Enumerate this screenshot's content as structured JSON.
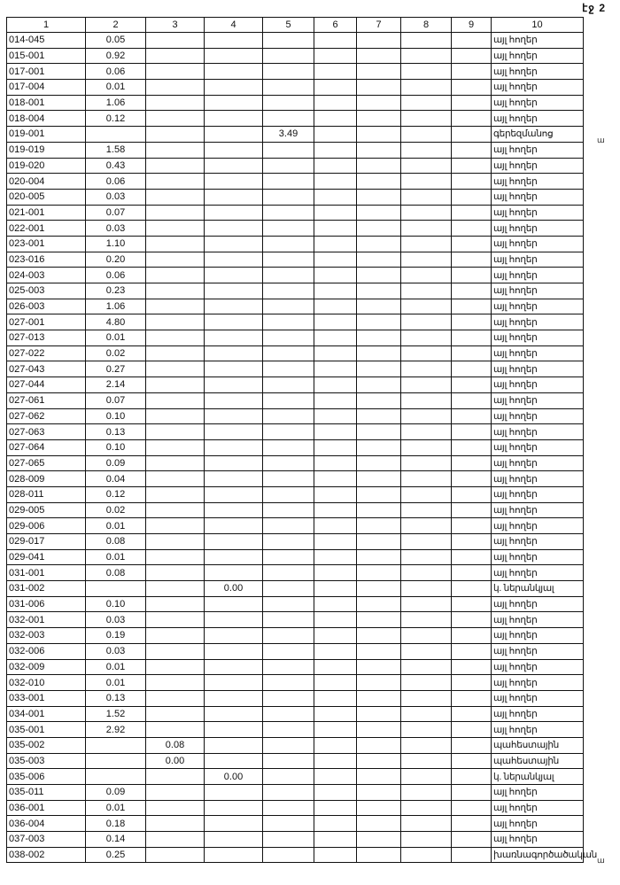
{
  "page_label": "էջ 2",
  "columns": [
    "1",
    "2",
    "3",
    "4",
    "5",
    "6",
    "7",
    "8",
    "9",
    "10"
  ],
  "rows": [
    [
      "014-045",
      "0.05",
      "",
      "",
      "",
      "այլ հողեր"
    ],
    [
      "015-001",
      "0.92",
      "",
      "",
      "",
      "այլ հողեր"
    ],
    [
      "017-001",
      "0.06",
      "",
      "",
      "",
      "այլ հողեր"
    ],
    [
      "017-004",
      "0.01",
      "",
      "",
      "",
      "այլ հողեր"
    ],
    [
      "018-001",
      "1.06",
      "",
      "",
      "",
      "այլ հողեր"
    ],
    [
      "018-004",
      "0.12",
      "",
      "",
      "",
      "այլ հողեր"
    ],
    [
      "019-001",
      "",
      "",
      "",
      "3.49",
      "գերեզմանոց"
    ],
    [
      "019-019",
      "1.58",
      "",
      "",
      "",
      "այլ հողեր"
    ],
    [
      "019-020",
      "0.43",
      "",
      "",
      "",
      "այլ հողեր"
    ],
    [
      "020-004",
      "0.06",
      "",
      "",
      "",
      "այլ հողեր"
    ],
    [
      "020-005",
      "0.03",
      "",
      "",
      "",
      "այլ հողեր"
    ],
    [
      "021-001",
      "0.07",
      "",
      "",
      "",
      "այլ հողեր"
    ],
    [
      "022-001",
      "0.03",
      "",
      "",
      "",
      "այլ հողեր"
    ],
    [
      "023-001",
      "1.10",
      "",
      "",
      "",
      "այլ հողեր"
    ],
    [
      "023-016",
      "0.20",
      "",
      "",
      "",
      "այլ հողեր"
    ],
    [
      "024-003",
      "0.06",
      "",
      "",
      "",
      "այլ հողեր"
    ],
    [
      "025-003",
      "0.23",
      "",
      "",
      "",
      "այլ հողեր"
    ],
    [
      "026-003",
      "1.06",
      "",
      "",
      "",
      "այլ հողեր"
    ],
    [
      "027-001",
      "4.80",
      "",
      "",
      "",
      "այլ հողեր"
    ],
    [
      "027-013",
      "0.01",
      "",
      "",
      "",
      "այլ հողեր"
    ],
    [
      "027-022",
      "0.02",
      "",
      "",
      "",
      "այլ հողեր"
    ],
    [
      "027-043",
      "0.27",
      "",
      "",
      "",
      "այլ հողեր"
    ],
    [
      "027-044",
      "2.14",
      "",
      "",
      "",
      "այլ հողեր"
    ],
    [
      "027-061",
      "0.07",
      "",
      "",
      "",
      "այլ հողեր"
    ],
    [
      "027-062",
      "0.10",
      "",
      "",
      "",
      "այլ հողեր"
    ],
    [
      "027-063",
      "0.13",
      "",
      "",
      "",
      "այլ հողեր"
    ],
    [
      "027-064",
      "0.10",
      "",
      "",
      "",
      "այլ հողեր"
    ],
    [
      "027-065",
      "0.09",
      "",
      "",
      "",
      "այլ հողեր"
    ],
    [
      "028-009",
      "0.04",
      "",
      "",
      "",
      "այլ հողեր"
    ],
    [
      "028-011",
      "0.12",
      "",
      "",
      "",
      "այլ հողեր"
    ],
    [
      "029-005",
      "0.02",
      "",
      "",
      "",
      "այլ հողեր"
    ],
    [
      "029-006",
      "0.01",
      "",
      "",
      "",
      "այլ հողեր"
    ],
    [
      "029-017",
      "0.08",
      "",
      "",
      "",
      "այլ հողեր"
    ],
    [
      "029-041",
      "0.01",
      "",
      "",
      "",
      "այլ հողեր"
    ],
    [
      "031-001",
      "0.08",
      "",
      "",
      "",
      "այլ հողեր"
    ],
    [
      "031-002",
      "",
      "",
      "0.00",
      "",
      "կ. ներանկյալ"
    ],
    [
      "031-006",
      "0.10",
      "",
      "",
      "",
      "այլ հողեր"
    ],
    [
      "032-001",
      "0.03",
      "",
      "",
      "",
      "այլ հողեր"
    ],
    [
      "032-003",
      "0.19",
      "",
      "",
      "",
      "այլ հողեր"
    ],
    [
      "032-006",
      "0.03",
      "",
      "",
      "",
      "այլ հողեր"
    ],
    [
      "032-009",
      "0.01",
      "",
      "",
      "",
      "այլ հողեր"
    ],
    [
      "032-010",
      "0.01",
      "",
      "",
      "",
      "այլ հողեր"
    ],
    [
      "033-001",
      "0.13",
      "",
      "",
      "",
      "այլ հողեր"
    ],
    [
      "034-001",
      "1.52",
      "",
      "",
      "",
      "այլ հողեր"
    ],
    [
      "035-001",
      "2.92",
      "",
      "",
      "",
      "այլ հողեր"
    ],
    [
      "035-002",
      "",
      "0.08",
      "",
      "",
      "պահեստային"
    ],
    [
      "035-003",
      "",
      "0.00",
      "",
      "",
      "պահեստային"
    ],
    [
      "035-006",
      "",
      "",
      "0.00",
      "",
      "կ. ներանկյալ"
    ],
    [
      "035-011",
      "0.09",
      "",
      "",
      "",
      "այլ հողեր"
    ],
    [
      "036-001",
      "0.01",
      "",
      "",
      "",
      "այլ հողեր"
    ],
    [
      "036-004",
      "0.18",
      "",
      "",
      "",
      "այլ հողեր"
    ],
    [
      "037-003",
      "0.14",
      "",
      "",
      "",
      "այլ հողեր"
    ],
    [
      "038-002",
      "0.25",
      "",
      "",
      "",
      "խառնագործածական"
    ]
  ],
  "margin_marks": [
    "ա",
    "ա"
  ]
}
